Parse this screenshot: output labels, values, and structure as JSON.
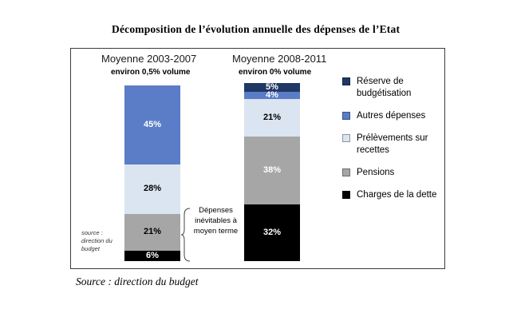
{
  "page": {
    "title": "Décomposition de l’évolution annuelle des dépenses de l’Etat",
    "caption": "Source : direction du budget"
  },
  "chart_data": {
    "type": "bar",
    "subtype": "stacked-column-100",
    "title": "Décomposition de l’évolution annuelle des dépenses de l’Etat",
    "unit": "%",
    "stack_total": 100,
    "grid": false,
    "legend_position": "right",
    "categories": [
      "Moyenne 2003-2007",
      "Moyenne 2008-2011"
    ],
    "series": [
      {
        "name": "Réserve de budgétisation",
        "color": "#1f3864",
        "values": [
          0,
          5
        ]
      },
      {
        "name": "Autres dépenses",
        "color": "#5b7dc7",
        "values": [
          45,
          4
        ]
      },
      {
        "name": "Prélèvements sur recettes",
        "color": "#dbe5f1",
        "values": [
          28,
          21
        ]
      },
      {
        "name": "Pensions",
        "color": "#a6a6a6",
        "values": [
          21,
          38
        ]
      },
      {
        "name": "Charges de la dette",
        "color": "#000000",
        "values": [
          6,
          32
        ]
      }
    ],
    "columns": [
      {
        "header": "Moyenne 2003-2007",
        "subheader": "environ 0,5% volume",
        "segments_top_to_bottom": [
          {
            "name": "Autres dépenses",
            "value": 45,
            "label": "45%",
            "color": "#5b7dc7",
            "label_color": "#ffffff"
          },
          {
            "name": "Prélèvements sur recettes",
            "value": 28,
            "label": "28%",
            "color": "#dbe5f1",
            "label_color": "#000000"
          },
          {
            "name": "Pensions",
            "value": 21,
            "label": "21%",
            "color": "#a6a6a6",
            "label_color": "#000000"
          },
          {
            "name": "Charges de la dette",
            "value": 6,
            "label": "6%",
            "color": "#000000",
            "label_color": "#ffffff"
          }
        ]
      },
      {
        "header": "Moyenne 2008-2011",
        "subheader": "environ 0% volume",
        "segments_top_to_bottom": [
          {
            "name": "Réserve de budgétisation",
            "value": 5,
            "label": "5%",
            "color": "#1f3864",
            "label_color": "#ffffff"
          },
          {
            "name": "Autres dépenses",
            "value": 4,
            "label": "4%",
            "color": "#5b7dc7",
            "label_color": "#ffffff"
          },
          {
            "name": "Prélèvements sur recettes",
            "value": 21,
            "label": "21%",
            "color": "#dbe5f1",
            "label_color": "#000000"
          },
          {
            "name": "Pensions",
            "value": 38,
            "label": "38%",
            "color": "#a6a6a6",
            "label_color": "#ffffff"
          },
          {
            "name": "Charges de la dette",
            "value": 32,
            "label": "32%",
            "color": "#000000",
            "label_color": "#ffffff"
          }
        ]
      }
    ],
    "legend": [
      {
        "label": "Réserve de budgétisation",
        "color": "#1f3864"
      },
      {
        "label": "Autres dépenses",
        "color": "#5b7dc7"
      },
      {
        "label": "Prélèvements sur recettes",
        "color": "#dbe5f1"
      },
      {
        "label": "Pensions",
        "color": "#a6a6a6"
      },
      {
        "label": "Charges de la dette",
        "color": "#000000"
      }
    ],
    "annotation": "Dépenses inévitables à moyen terme",
    "inner_source_note": "source :\ndirection du\nbudget"
  }
}
